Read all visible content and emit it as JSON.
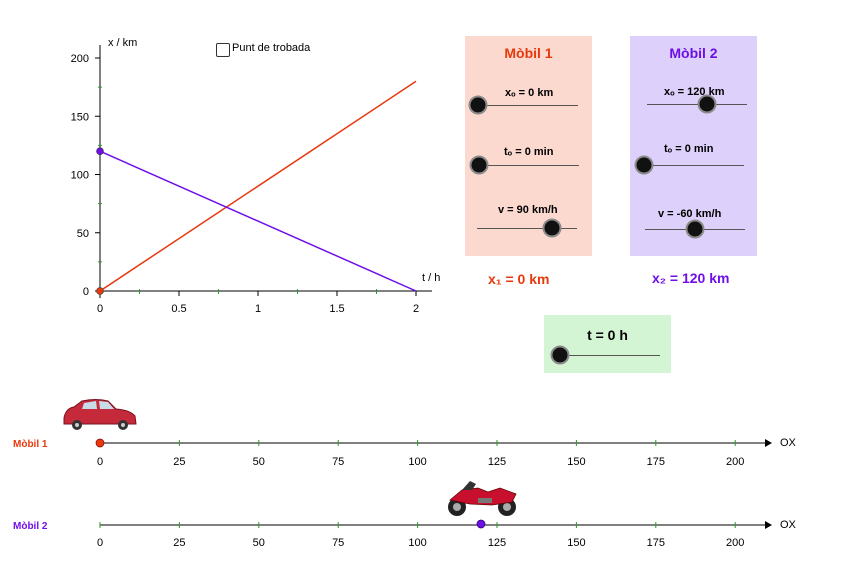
{
  "graph": {
    "y_axis_label": "x / km",
    "x_axis_label": "t / h",
    "y_ticks": [
      "200",
      "150",
      "100",
      "50",
      "0"
    ],
    "x_ticks": [
      "0",
      "0.5",
      "1",
      "1.5",
      "2"
    ]
  },
  "meeting_checkbox": {
    "label": "Punt de trobada",
    "checked": false
  },
  "mobile1": {
    "title": "Mòbil 1",
    "x0": "xₒ = 0 km",
    "t0": "tₒ = 0 min",
    "v": "v = 90 km/h",
    "position_label": "x₁ = 0 km",
    "color": "#e8380d",
    "panel_bg": "#fcd9ce"
  },
  "mobile2": {
    "title": "Mòbil 2",
    "x0": "xₒ = 120 km",
    "t0": "tₒ = 0 min",
    "v": "v = -60 km/h",
    "position_label": "x₂ = 120 km",
    "color": "#6f0fe8",
    "panel_bg": "#ddd0fa"
  },
  "time": {
    "label": "t = 0 h",
    "panel_bg": "#d4f5d4"
  },
  "tracks": {
    "label1": "Mòbil 1",
    "label2": "Mòbil 2",
    "axis_label": "OX",
    "ticks": [
      "0",
      "25",
      "50",
      "75",
      "100",
      "125",
      "150",
      "175",
      "200"
    ]
  },
  "chart_data": {
    "type": "line",
    "xlabel": "t / h",
    "ylabel": "x / km",
    "xlim": [
      0,
      2
    ],
    "ylim": [
      0,
      200
    ],
    "series": [
      {
        "name": "Mòbil 1",
        "color": "#e8380d",
        "x": [
          0,
          2
        ],
        "y": [
          0,
          180
        ]
      },
      {
        "name": "Mòbil 2",
        "color": "#6f0fe8",
        "x": [
          0,
          2
        ],
        "y": [
          120,
          0
        ]
      }
    ]
  }
}
